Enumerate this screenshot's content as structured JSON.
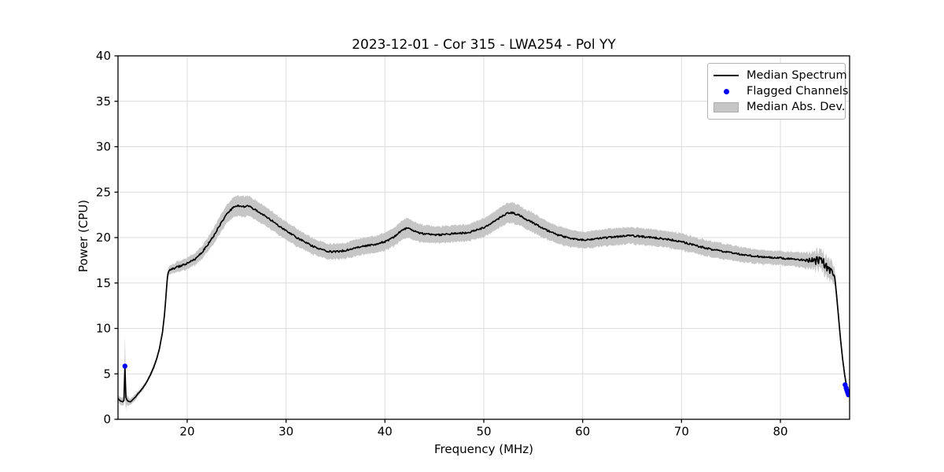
{
  "chart_data": {
    "type": "line",
    "title": "2023-12-01 - Cor 315 - LWA254 - Pol YY",
    "xlabel": "Frequency (MHz)",
    "ylabel": "Power (CPU)",
    "xlim": [
      13,
      87
    ],
    "ylim": [
      0,
      40
    ],
    "xticks": [
      20,
      30,
      40,
      50,
      60,
      70,
      80
    ],
    "yticks": [
      0,
      5,
      10,
      15,
      20,
      25,
      30,
      35,
      40
    ],
    "grid": true,
    "legend": {
      "position": "upper right",
      "entries": [
        {
          "label": "Median Spectrum",
          "type": "line",
          "color": "#000000"
        },
        {
          "label": "Flagged Channels",
          "type": "marker",
          "color": "#0000ff"
        },
        {
          "label": "Median Abs. Dev.",
          "type": "patch",
          "color": "#c6c6c6"
        }
      ]
    },
    "colors": {
      "line": "#000000",
      "flagged": "#0000ff",
      "band": "#c3c3c3",
      "grid": "#dcdcdc",
      "frame": "#000000"
    },
    "series": {
      "median_spectrum": [
        [
          13.0,
          2.3
        ],
        [
          13.2,
          2.05
        ],
        [
          13.45,
          1.9
        ],
        [
          13.6,
          2.1
        ],
        [
          13.7,
          5.85
        ],
        [
          13.8,
          2.4
        ],
        [
          13.95,
          2.05
        ],
        [
          14.2,
          1.9
        ],
        [
          14.5,
          2.15
        ],
        [
          14.8,
          2.5
        ],
        [
          15.1,
          2.9
        ],
        [
          15.4,
          3.3
        ],
        [
          15.7,
          3.75
        ],
        [
          16.0,
          4.3
        ],
        [
          16.3,
          4.95
        ],
        [
          16.6,
          5.7
        ],
        [
          16.9,
          6.6
        ],
        [
          17.2,
          7.8
        ],
        [
          17.5,
          9.6
        ],
        [
          17.7,
          11.5
        ],
        [
          17.85,
          13.5
        ],
        [
          18.0,
          15.6
        ],
        [
          18.1,
          16.3
        ],
        [
          18.25,
          16.5
        ],
        [
          18.5,
          16.55
        ],
        [
          18.75,
          16.65
        ],
        [
          19.0,
          16.8
        ],
        [
          19.25,
          16.85
        ],
        [
          19.5,
          16.95
        ],
        [
          19.75,
          17.05
        ],
        [
          20.0,
          17.2
        ],
        [
          20.25,
          17.3
        ],
        [
          20.5,
          17.45
        ],
        [
          20.75,
          17.6
        ],
        [
          21.0,
          17.9
        ],
        [
          21.25,
          18.1
        ],
        [
          21.5,
          18.4
        ],
        [
          21.75,
          18.75
        ],
        [
          22.0,
          19.1
        ],
        [
          22.25,
          19.5
        ],
        [
          22.5,
          19.9
        ],
        [
          22.75,
          20.3
        ],
        [
          23.0,
          20.8
        ],
        [
          23.25,
          21.3
        ],
        [
          23.5,
          21.7
        ],
        [
          23.75,
          22.15
        ],
        [
          24.0,
          22.55
        ],
        [
          24.25,
          22.9
        ],
        [
          24.5,
          23.15
        ],
        [
          24.75,
          23.35
        ],
        [
          25.0,
          23.45
        ],
        [
          25.25,
          23.5
        ],
        [
          25.5,
          23.45
        ],
        [
          25.75,
          23.4
        ],
        [
          26.0,
          23.45
        ],
        [
          26.25,
          23.4
        ],
        [
          26.5,
          23.3
        ],
        [
          26.75,
          23.15
        ],
        [
          27.0,
          23.0
        ],
        [
          27.25,
          22.85
        ],
        [
          27.5,
          22.65
        ],
        [
          27.75,
          22.5
        ],
        [
          28.0,
          22.3
        ],
        [
          28.25,
          22.1
        ],
        [
          28.5,
          21.9
        ],
        [
          28.75,
          21.7
        ],
        [
          29.0,
          21.5
        ],
        [
          29.25,
          21.3
        ],
        [
          29.5,
          21.1
        ],
        [
          29.75,
          20.95
        ],
        [
          30.0,
          20.75
        ],
        [
          30.5,
          20.4
        ],
        [
          31.0,
          20.05
        ],
        [
          31.5,
          19.75
        ],
        [
          32.0,
          19.45
        ],
        [
          32.5,
          19.15
        ],
        [
          33.0,
          18.9
        ],
        [
          33.5,
          18.7
        ],
        [
          34.0,
          18.55
        ],
        [
          34.5,
          18.45
        ],
        [
          35.0,
          18.45
        ],
        [
          35.5,
          18.5
        ],
        [
          36.0,
          18.6
        ],
        [
          36.5,
          18.75
        ],
        [
          37.0,
          18.9
        ],
        [
          37.5,
          19.0
        ],
        [
          38.0,
          19.1
        ],
        [
          38.5,
          19.15
        ],
        [
          39.0,
          19.25
        ],
        [
          39.5,
          19.4
        ],
        [
          40.0,
          19.55
        ],
        [
          40.5,
          19.8
        ],
        [
          41.0,
          20.15
        ],
        [
          41.5,
          20.6
        ],
        [
          42.0,
          20.95
        ],
        [
          42.3,
          21.1
        ],
        [
          42.6,
          20.95
        ],
        [
          43.0,
          20.7
        ],
        [
          43.5,
          20.5
        ],
        [
          44.0,
          20.4
        ],
        [
          44.5,
          20.35
        ],
        [
          45.0,
          20.3
        ],
        [
          45.5,
          20.3
        ],
        [
          46.0,
          20.35
        ],
        [
          46.5,
          20.4
        ],
        [
          47.0,
          20.45
        ],
        [
          47.5,
          20.45
        ],
        [
          48.0,
          20.5
        ],
        [
          48.5,
          20.6
        ],
        [
          49.0,
          20.75
        ],
        [
          49.5,
          20.9
        ],
        [
          50.0,
          21.1
        ],
        [
          50.5,
          21.4
        ],
        [
          51.0,
          21.75
        ],
        [
          51.5,
          22.1
        ],
        [
          52.0,
          22.45
        ],
        [
          52.3,
          22.65
        ],
        [
          52.6,
          22.75
        ],
        [
          53.0,
          22.7
        ],
        [
          53.5,
          22.5
        ],
        [
          54.0,
          22.2
        ],
        [
          54.5,
          21.9
        ],
        [
          55.0,
          21.6
        ],
        [
          55.5,
          21.3
        ],
        [
          56.0,
          21.0
        ],
        [
          56.5,
          20.75
        ],
        [
          57.0,
          20.5
        ],
        [
          57.5,
          20.3
        ],
        [
          58.0,
          20.15
        ],
        [
          58.5,
          20.0
        ],
        [
          59.0,
          19.9
        ],
        [
          59.5,
          19.8
        ],
        [
          60.0,
          19.75
        ],
        [
          60.5,
          19.75
        ],
        [
          61.0,
          19.8
        ],
        [
          61.5,
          19.9
        ],
        [
          62.0,
          19.95
        ],
        [
          62.5,
          20.0
        ],
        [
          63.0,
          20.05
        ],
        [
          63.5,
          20.1
        ],
        [
          64.0,
          20.15
        ],
        [
          64.5,
          20.2
        ],
        [
          65.0,
          20.2
        ],
        [
          65.5,
          20.15
        ],
        [
          66.0,
          20.1
        ],
        [
          66.5,
          20.05
        ],
        [
          67.0,
          20.0
        ],
        [
          67.5,
          19.95
        ],
        [
          68.0,
          19.9
        ],
        [
          68.5,
          19.8
        ],
        [
          69.0,
          19.75
        ],
        [
          69.5,
          19.65
        ],
        [
          70.0,
          19.55
        ],
        [
          70.5,
          19.4
        ],
        [
          71.0,
          19.25
        ],
        [
          71.5,
          19.1
        ],
        [
          72.0,
          18.95
        ],
        [
          72.5,
          18.85
        ],
        [
          73.0,
          18.7
        ],
        [
          73.5,
          18.6
        ],
        [
          74.0,
          18.5
        ],
        [
          74.5,
          18.45
        ],
        [
          75.0,
          18.35
        ],
        [
          75.5,
          18.25
        ],
        [
          76.0,
          18.15
        ],
        [
          76.5,
          18.05
        ],
        [
          77.0,
          18.0
        ],
        [
          77.5,
          17.95
        ],
        [
          78.0,
          17.9
        ],
        [
          78.5,
          17.85
        ],
        [
          79.0,
          17.8
        ],
        [
          79.5,
          17.75
        ],
        [
          80.0,
          17.75
        ],
        [
          80.5,
          17.7
        ],
        [
          81.0,
          17.65
        ],
        [
          81.5,
          17.6
        ],
        [
          82.0,
          17.55
        ],
        [
          82.5,
          17.5
        ],
        [
          83.0,
          17.5
        ],
        [
          83.5,
          17.4
        ],
        [
          84.0,
          17.3
        ],
        [
          84.5,
          17.1
        ],
        [
          85.0,
          16.6
        ],
        [
          85.3,
          16.1
        ],
        [
          85.5,
          15.6
        ],
        [
          85.7,
          13.5
        ],
        [
          85.9,
          11.0
        ],
        [
          86.1,
          8.6
        ],
        [
          86.3,
          6.6
        ],
        [
          86.5,
          4.9
        ],
        [
          86.7,
          3.6
        ],
        [
          86.85,
          2.9
        ],
        [
          86.95,
          2.7
        ]
      ],
      "median_abs_dev": [
        [
          13.0,
          0.3
        ],
        [
          13.6,
          0.4
        ],
        [
          13.7,
          3.4
        ],
        [
          13.85,
          0.5
        ],
        [
          14.2,
          0.3
        ],
        [
          15,
          0.2
        ],
        [
          16,
          0.2
        ],
        [
          17,
          0.25
        ],
        [
          17.8,
          0.3
        ],
        [
          18.2,
          0.4
        ],
        [
          19,
          0.5
        ],
        [
          20,
          0.55
        ],
        [
          21,
          0.6
        ],
        [
          22,
          0.7
        ],
        [
          23,
          0.85
        ],
        [
          24,
          0.95
        ],
        [
          25,
          1.05
        ],
        [
          26,
          1.05
        ],
        [
          27,
          1.0
        ],
        [
          28,
          1.0
        ],
        [
          29,
          0.95
        ],
        [
          30,
          0.9
        ],
        [
          31,
          0.9
        ],
        [
          32,
          0.85
        ],
        [
          33,
          0.8
        ],
        [
          34,
          0.8
        ],
        [
          35,
          0.8
        ],
        [
          36,
          0.8
        ],
        [
          37,
          0.85
        ],
        [
          38,
          0.85
        ],
        [
          39,
          0.85
        ],
        [
          40,
          0.9
        ],
        [
          41,
          0.95
        ],
        [
          42,
          1.0
        ],
        [
          43,
          0.95
        ],
        [
          44,
          0.9
        ],
        [
          45,
          0.85
        ],
        [
          46,
          0.85
        ],
        [
          47,
          0.85
        ],
        [
          48,
          0.85
        ],
        [
          49,
          0.9
        ],
        [
          50,
          0.95
        ],
        [
          51,
          1.0
        ],
        [
          52,
          1.05
        ],
        [
          53,
          1.05
        ],
        [
          54,
          1.0
        ],
        [
          55,
          1.0
        ],
        [
          56,
          0.95
        ],
        [
          57,
          0.9
        ],
        [
          58,
          0.9
        ],
        [
          59,
          0.85
        ],
        [
          60,
          0.85
        ],
        [
          62,
          0.85
        ],
        [
          64,
          0.85
        ],
        [
          66,
          0.85
        ],
        [
          68,
          0.85
        ],
        [
          70,
          0.85
        ],
        [
          72,
          0.8
        ],
        [
          74,
          0.8
        ],
        [
          76,
          0.75
        ],
        [
          78,
          0.7
        ],
        [
          80,
          0.7
        ],
        [
          81,
          0.7
        ],
        [
          82,
          0.75
        ],
        [
          83,
          0.8
        ],
        [
          84,
          0.95
        ],
        [
          84.7,
          1.05
        ],
        [
          85.2,
          1.0
        ],
        [
          85.5,
          0.85
        ],
        [
          85.8,
          0.6
        ],
        [
          86.1,
          0.45
        ],
        [
          86.4,
          0.35
        ],
        [
          86.7,
          0.25
        ],
        [
          86.95,
          0.2
        ]
      ],
      "flagged_channels": [
        [
          13.7,
          5.85
        ],
        [
          86.55,
          3.8
        ],
        [
          86.65,
          3.45
        ],
        [
          86.72,
          3.2
        ],
        [
          86.8,
          2.95
        ],
        [
          86.88,
          2.7
        ]
      ]
    }
  }
}
